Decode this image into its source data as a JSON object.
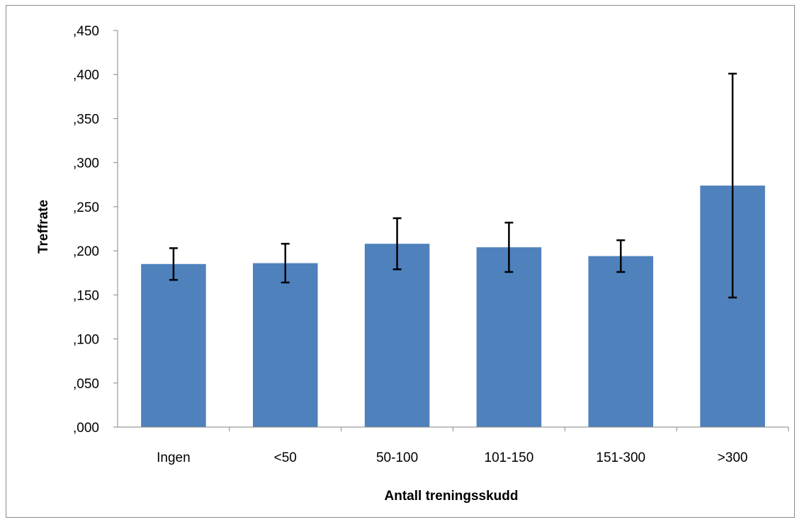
{
  "chart_data": {
    "type": "bar",
    "title": "",
    "xlabel": "Antall treningsskudd",
    "ylabel": "Treffrate",
    "categories": [
      "Ingen",
      "<50",
      "50-100",
      "101-150",
      "151-300",
      ">300"
    ],
    "values": [
      0.185,
      0.186,
      0.208,
      0.204,
      0.194,
      0.274
    ],
    "error_bars": {
      "upper": [
        0.203,
        0.208,
        0.237,
        0.232,
        0.212,
        0.401
      ],
      "lower": [
        0.167,
        0.164,
        0.179,
        0.176,
        0.176,
        0.147
      ]
    },
    "ylim": [
      0,
      0.45
    ],
    "yticks": [
      ",000",
      ",050",
      ",100",
      ",150",
      ",200",
      ",250",
      ",300",
      ",350",
      ",400",
      ",450"
    ],
    "grid": false,
    "legend": "none",
    "colors": {
      "bar": "#4f81bd",
      "error_bar": "#000000",
      "axis": "#868686"
    }
  }
}
